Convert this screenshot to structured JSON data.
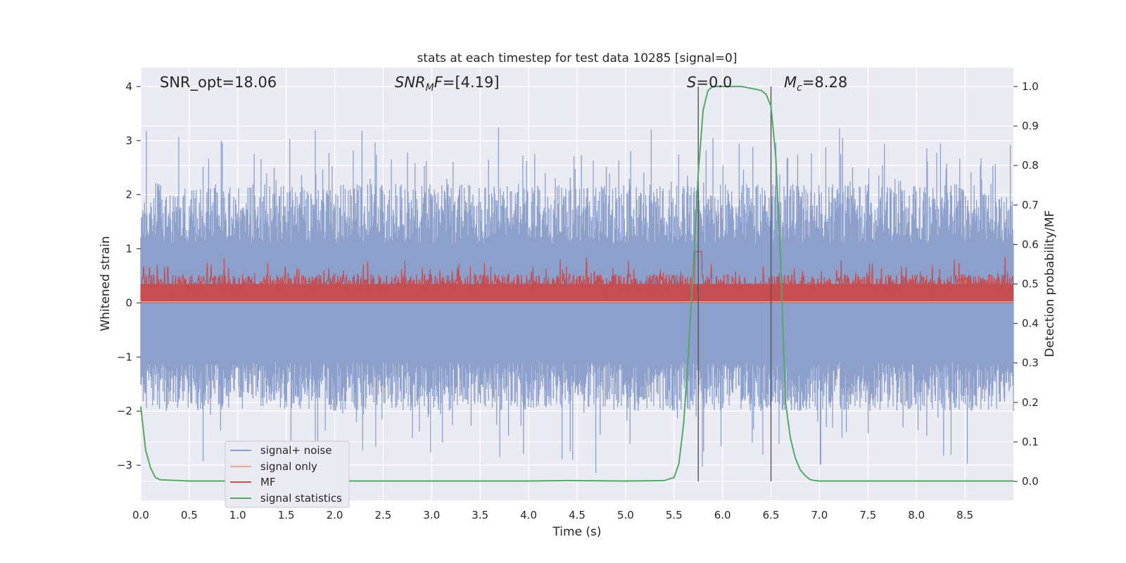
{
  "chart_data": {
    "type": "line",
    "title": "stats at each timestep for test data 10285 [signal=0]",
    "xlabel": "Time (s)",
    "ylabel": "Whitened strain",
    "y2label": "Detection probability/MF",
    "xlim": [
      0.0,
      9.0
    ],
    "ylim": [
      -3.65,
      4.35
    ],
    "y2lim": [
      -0.048,
      1.048
    ],
    "x_ticks": [
      "0.0",
      "0.5",
      "1.0",
      "1.5",
      "2.0",
      "2.5",
      "3.0",
      "3.5",
      "4.0",
      "4.5",
      "5.0",
      "5.5",
      "6.0",
      "6.5",
      "7.0",
      "7.5",
      "8.0",
      "8.5"
    ],
    "y_ticks": [
      "4",
      "3",
      "2",
      "1",
      "0",
      "−1",
      "−2",
      "−3"
    ],
    "y2_ticks": [
      "1.0",
      "0.9",
      "0.8",
      "0.7",
      "0.6",
      "0.5",
      "0.4",
      "0.3",
      "0.2",
      "0.1",
      "0.0"
    ],
    "grid": true,
    "legend_position": "lower-left",
    "annotations": {
      "snr_opt": "SNR_opt=18.06",
      "snr_mf": "[4.19]",
      "s_value": "=0.0",
      "mc_value": "=8.28"
    },
    "vertical_lines": [
      5.75,
      6.5
    ],
    "series": [
      {
        "name": "signal+ noise",
        "color": "#8da0cb",
        "description_range": [
          -3.3,
          4.0
        ]
      },
      {
        "name": "signal only",
        "color": "#e8a989",
        "values_constant": 0.02
      },
      {
        "name": "MF",
        "color": "#c44e52",
        "description_range": [
          0.0,
          1.0
        ]
      },
      {
        "name": "signal statistics",
        "color": "#55a868",
        "axis": "right",
        "x": [
          0.0,
          0.05,
          0.1,
          0.15,
          0.2,
          0.3,
          0.4,
          0.5,
          1.0,
          2.0,
          3.0,
          4.0,
          4.4,
          5.0,
          5.4,
          5.5,
          5.55,
          5.6,
          5.65,
          5.7,
          5.75,
          5.8,
          5.85,
          5.9,
          6.0,
          6.2,
          6.4,
          6.45,
          6.5,
          6.55,
          6.6,
          6.65,
          6.7,
          6.75,
          6.8,
          6.85,
          6.9,
          6.95,
          7.0,
          7.5,
          8.0,
          8.5,
          9.0
        ],
        "y": [
          0.19,
          0.08,
          0.035,
          0.01,
          0.004,
          0.003,
          0.002,
          0.001,
          0.001,
          0.001,
          0.001,
          0.001,
          0.002,
          0.001,
          0.002,
          0.01,
          0.045,
          0.15,
          0.33,
          0.55,
          0.78,
          0.94,
          0.99,
          1.0,
          1.0,
          1.0,
          0.99,
          0.98,
          0.95,
          0.82,
          0.55,
          0.2,
          0.11,
          0.06,
          0.03,
          0.015,
          0.005,
          0.002,
          0.001,
          0.001,
          0.001,
          0.001,
          0.001
        ]
      }
    ]
  }
}
